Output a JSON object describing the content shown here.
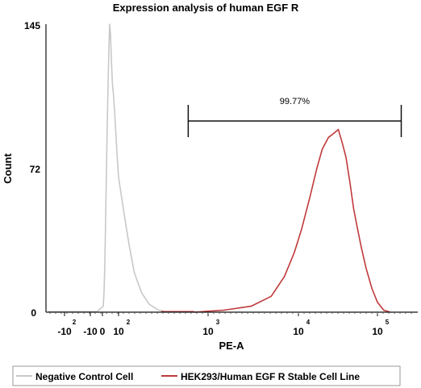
{
  "chart_data": {
    "type": "area",
    "title": "Expression analysis of human EGF R",
    "xlabel": "PE-A",
    "ylabel": "Count",
    "x_scale": "biexponential",
    "ylim": [
      0,
      145
    ],
    "y_tick_labels": [
      "0",
      "72",
      "145"
    ],
    "x_ticks": [
      {
        "base": "-10",
        "exp": "2",
        "value": -100
      },
      {
        "base": "-10",
        "exp": "",
        "value": -10
      },
      {
        "base": "0",
        "exp": "",
        "value": 0
      },
      {
        "base": "10",
        "exp": "2",
        "value": 100
      },
      {
        "base": "10",
        "exp": "3",
        "value": 1000
      },
      {
        "base": "10",
        "exp": "4",
        "value": 10000
      },
      {
        "base": "10",
        "exp": "5",
        "value": 100000
      }
    ],
    "annotation": {
      "label": "99.77%",
      "x_range": [
        600,
        200000
      ]
    },
    "legend_position": "bottom",
    "series": [
      {
        "name": "Negative Control Cell",
        "color": "#c8c8c8",
        "points": [
          [
            -5,
            0
          ],
          [
            5,
            3
          ],
          [
            10,
            10
          ],
          [
            15,
            25
          ],
          [
            20,
            48
          ],
          [
            25,
            72
          ],
          [
            30,
            95
          ],
          [
            35,
            115
          ],
          [
            40,
            132
          ],
          [
            45,
            145
          ],
          [
            50,
            140
          ],
          [
            55,
            128
          ],
          [
            62,
            115
          ],
          [
            70,
            108
          ],
          [
            80,
            95
          ],
          [
            90,
            80
          ],
          [
            100,
            68
          ],
          [
            115,
            50
          ],
          [
            130,
            35
          ],
          [
            150,
            20
          ],
          [
            180,
            10
          ],
          [
            220,
            4
          ],
          [
            280,
            1
          ],
          [
            350,
            0
          ]
        ]
      },
      {
        "name": "HEK293/Human EGF R Stable Cell Line",
        "color": "#c0393b",
        "points": [
          [
            700,
            0
          ],
          [
            1500,
            1
          ],
          [
            3000,
            3
          ],
          [
            5000,
            8
          ],
          [
            7000,
            18
          ],
          [
            9000,
            30
          ],
          [
            11000,
            42
          ],
          [
            14000,
            58
          ],
          [
            17000,
            72
          ],
          [
            20000,
            82
          ],
          [
            24000,
            88
          ],
          [
            28000,
            90
          ],
          [
            32000,
            92
          ],
          [
            36000,
            85
          ],
          [
            40000,
            78
          ],
          [
            45000,
            65
          ],
          [
            50000,
            52
          ],
          [
            56000,
            42
          ],
          [
            63000,
            32
          ],
          [
            72000,
            22
          ],
          [
            85000,
            12
          ],
          [
            100000,
            5
          ],
          [
            120000,
            1
          ],
          [
            145000,
            0
          ]
        ]
      }
    ]
  }
}
